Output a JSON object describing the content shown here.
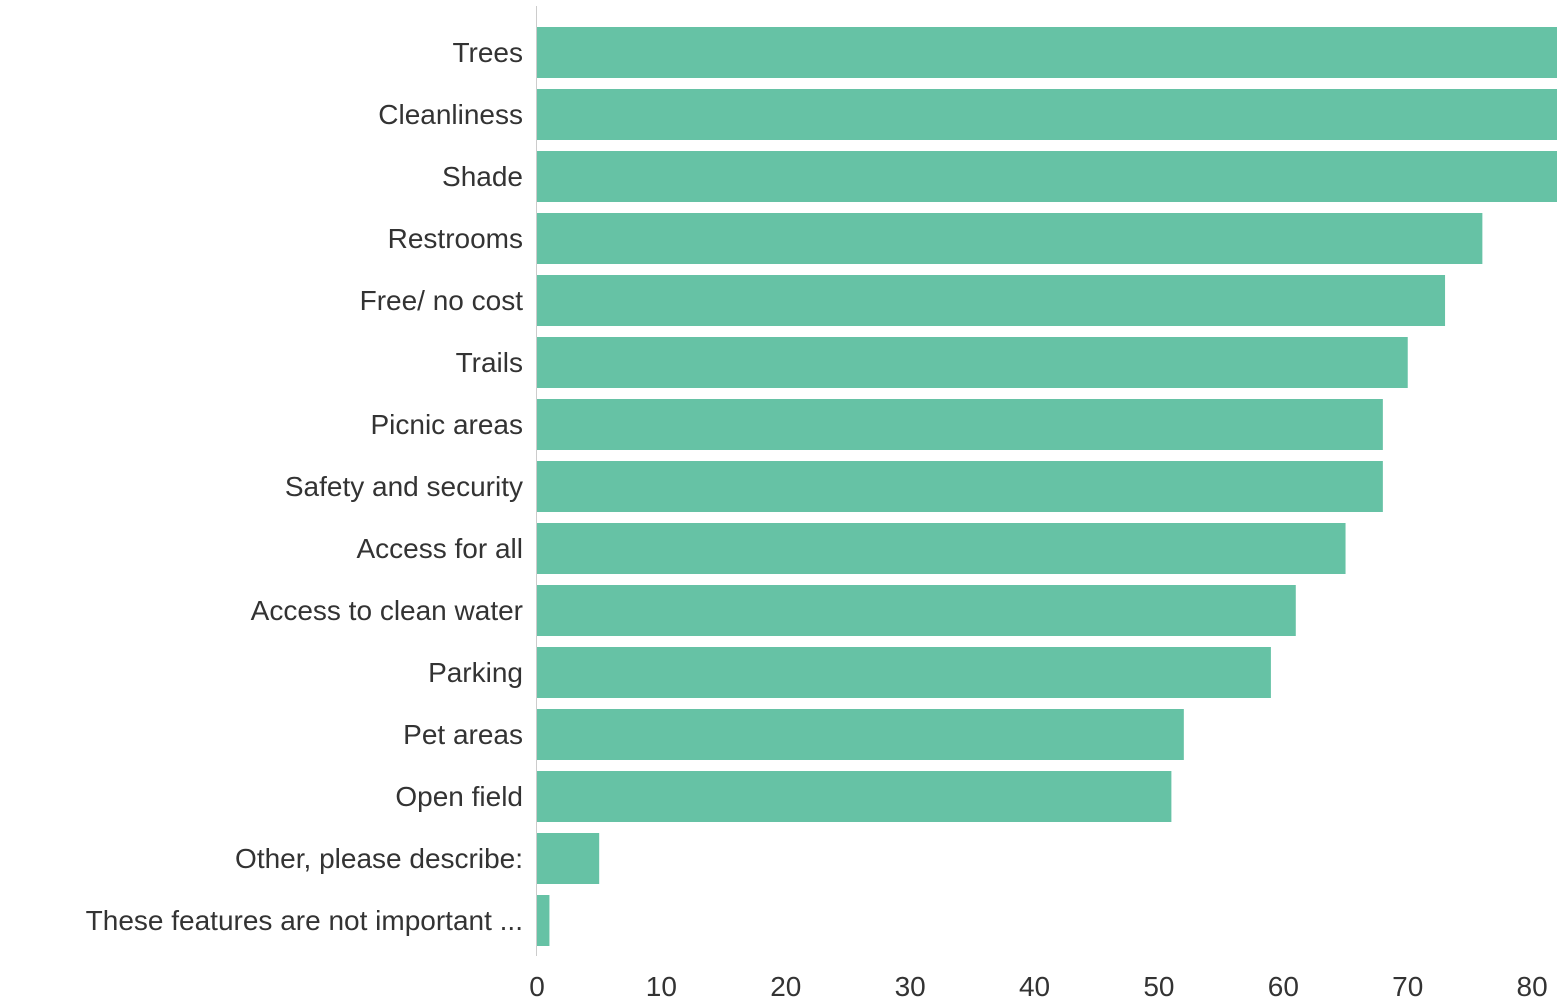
{
  "chart_data": {
    "type": "bar",
    "orientation": "horizontal",
    "categories": [
      "Trees",
      "Cleanliness",
      "Shade",
      "Restrooms",
      "Free/ no cost",
      "Trails",
      "Picnic areas",
      "Safety and security",
      "Access for all",
      "Access to clean water",
      "Parking",
      "Pet areas",
      "Open field",
      "Other, please describe:",
      "These features are not important ..."
    ],
    "values": [
      82,
      82,
      82,
      76,
      73,
      70,
      68,
      68,
      65,
      61,
      59,
      52,
      51,
      5,
      1
    ],
    "xlim": [
      0,
      82
    ],
    "xticks": [
      "0",
      "10",
      "20",
      "30",
      "40",
      "50",
      "60",
      "70",
      "80"
    ],
    "title": "",
    "xlabel": "",
    "ylabel": "",
    "grid": false,
    "legend": "none",
    "bar_color": "#66c2a5",
    "axis_color": "#cccccc",
    "text_color": "#333333"
  }
}
